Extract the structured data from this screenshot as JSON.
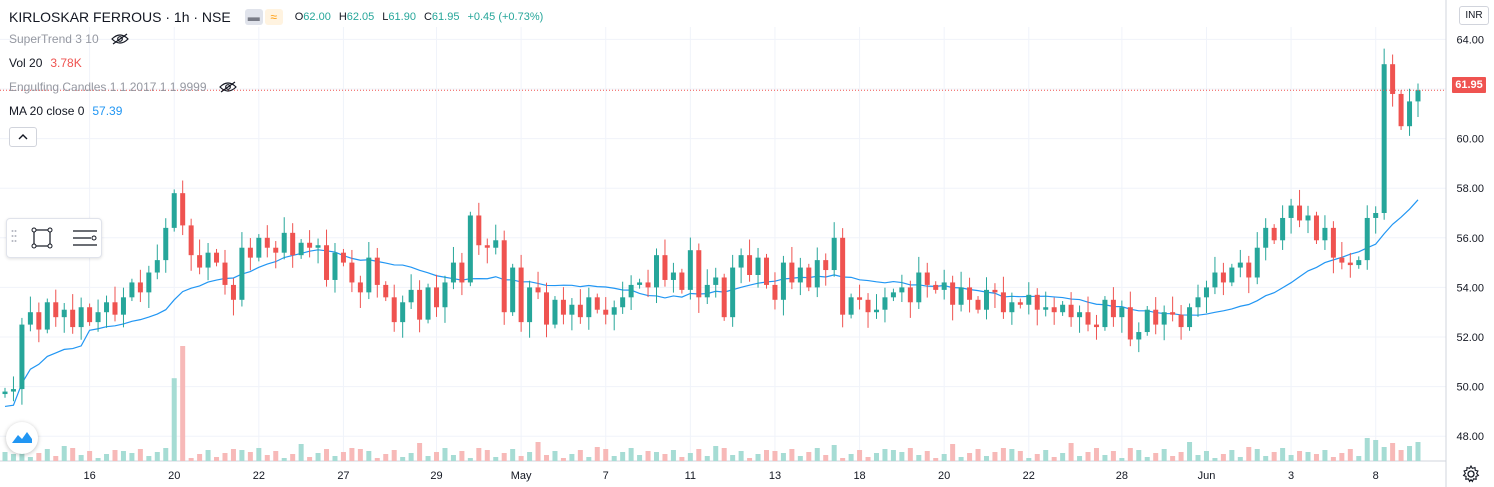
{
  "header": {
    "symbol": "KIRLOSKAR FERROUS · 1h · NSE",
    "open_label": "O",
    "open": "62.00",
    "high_label": "H",
    "high": "62.05",
    "low_label": "L",
    "low": "61.90",
    "close_label": "C",
    "close": "61.95",
    "change": "+0.45 (+0.73%)"
  },
  "indicators": {
    "supertrend": "SuperTrend 3 10",
    "volume": "Vol 20",
    "volume_value": "3.78K",
    "engulfing": "Engulfing Candles 1 1 2017 1 1 9999",
    "ma": "MA 20 close 0",
    "ma_value": "57.39"
  },
  "currency": "INR",
  "last_price_tag": "61.95",
  "colors": {
    "up": "#26a69a",
    "down": "#ef5350",
    "ma": "#2196f3",
    "volume_up": "#a6dcd4",
    "volume_down": "#f7b9b8",
    "grid": "#f0f3fa",
    "text": "#131722"
  },
  "icons": [
    "eye-off-icon",
    "chevron-up-icon",
    "rectangle-tool-icon",
    "object-tree-icon",
    "tradingview-logo-icon",
    "settings-gear-icon"
  ],
  "chart_data": {
    "type": "candlestick",
    "y_axis": {
      "ticks": [
        "64.00",
        "62.00",
        "60.00",
        "58.00",
        "56.00",
        "54.00",
        "52.00",
        "50.00",
        "48.00"
      ],
      "ylim": [
        47,
        64.5
      ]
    },
    "x_axis": {
      "ticks": [
        "16",
        "20",
        "22",
        "27",
        "29",
        "May",
        "7",
        "11",
        "13",
        "18",
        "20",
        "22",
        "28",
        "Jun",
        "3",
        "8"
      ]
    },
    "last_close": 61.95,
    "ma20_last": 57.39,
    "volume_last": "3.78K",
    "price_path": [
      49.8,
      49.9,
      52.5,
      53.0,
      52.3,
      53.4,
      52.8,
      53.1,
      52.4,
      53.2,
      52.6,
      53.0,
      53.4,
      52.9,
      53.6,
      54.2,
      53.8,
      54.6,
      55.1,
      56.4,
      57.8,
      56.5,
      55.3,
      54.8,
      55.4,
      55.0,
      54.1,
      53.5,
      55.6,
      55.2,
      56.0,
      55.6,
      55.4,
      56.2,
      55.3,
      55.8,
      55.6,
      55.7,
      54.3,
      55.4,
      55.0,
      54.2,
      53.8,
      55.2,
      54.1,
      53.6,
      52.6,
      53.4,
      53.9,
      52.7,
      54.0,
      53.2,
      54.2,
      55.0,
      54.2,
      56.9,
      55.7,
      55.6,
      55.9,
      53.0,
      54.8,
      52.6,
      54.0,
      53.8,
      52.5,
      53.5,
      52.9,
      53.3,
      52.8,
      53.6,
      53.1,
      52.9,
      53.2,
      53.6,
      54.1,
      54.2,
      54.0,
      55.3,
      54.3,
      54.6,
      53.9,
      55.5,
      53.6,
      54.1,
      54.4,
      52.8,
      54.8,
      55.3,
      54.5,
      55.2,
      54.1,
      53.5,
      55.0,
      54.2,
      54.8,
      54.0,
      55.1,
      54.7,
      56.0,
      52.9,
      53.6,
      53.5,
      53.0,
      53.1,
      53.6,
      53.8,
      54.0,
      53.4,
      54.6,
      54.1,
      53.9,
      54.2,
      53.3,
      54.0,
      53.5,
      53.1,
      53.9,
      53.8,
      53.0,
      53.4,
      53.3,
      53.7,
      53.1,
      53.2,
      53.0,
      53.3,
      52.8,
      53.0,
      52.5,
      52.4,
      53.5,
      52.8,
      53.2,
      51.9,
      52.2,
      53.1,
      52.5,
      53.0,
      52.9,
      52.4,
      53.2,
      53.6,
      54.0,
      54.6,
      54.2,
      54.8,
      55.0,
      54.4,
      55.6,
      56.4,
      55.9,
      56.8,
      57.3,
      56.7,
      56.9,
      55.9,
      56.4,
      55.2,
      55.0,
      54.9,
      55.1,
      56.8,
      57.0,
      63.0,
      61.8,
      60.5,
      61.5,
      61.95
    ],
    "volume_spike_bars": [
      {
        "index": 21,
        "relative": 1.0
      },
      {
        "index": 20,
        "relative": 0.72
      }
    ]
  }
}
